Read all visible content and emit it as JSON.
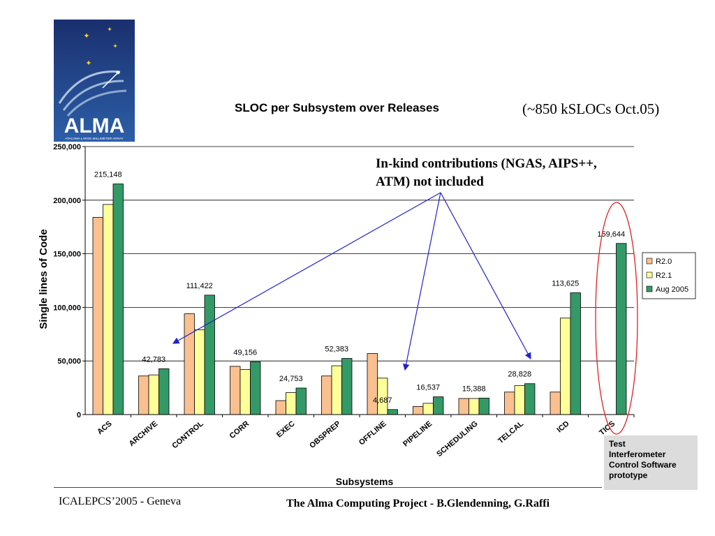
{
  "logo": {
    "wordmark": "ALMA",
    "subtitle": "ATACAMA LARGE MILLIMETER ARRAY"
  },
  "notes": {
    "ksloc": "(~850 kSLOCs Oct.05)",
    "inkind_line1": "In-kind contributions (NGAS, AIPS++,",
    "inkind_line2": "ATM) not included",
    "tics_line1": "Test",
    "tics_line2": "Interferometer",
    "tics_line3": "Control Software",
    "tics_line4": "prototype"
  },
  "footer": {
    "left": "ICALEPCS’2005 - Geneva",
    "right": "The Alma Computing Project - B.Glendenning, G.Raffi"
  },
  "colors": {
    "R2.0": "#fac090",
    "R2.1": "#ffff99",
    "Aug 2005": "#339966",
    "arrow": "#2222cc",
    "ellipse": "#e02020"
  },
  "chart_data": {
    "type": "bar",
    "title": "SLOC per Subsystem over Releases",
    "xlabel": "Subsystems",
    "ylabel": "Single lines of Code",
    "ylim": [
      0,
      250000
    ],
    "yticks": [
      "0",
      "50,000",
      "100,000",
      "150,000",
      "200,000",
      "250,000"
    ],
    "grid": true,
    "legend_position": "right",
    "categories": [
      "ACS",
      "ARCHIVE",
      "CONTROL",
      "CORR",
      "EXEC",
      "OBSPREP",
      "OFFLINE",
      "PIPELINE",
      "SCHEDULING",
      "TELCAL",
      "ICD",
      "TICS"
    ],
    "series": [
      {
        "name": "R2.0",
        "values": [
          184000,
          36000,
          94000,
          45000,
          13000,
          36000,
          57000,
          7500,
          15000,
          21000,
          21000,
          0
        ]
      },
      {
        "name": "R2.1",
        "values": [
          196000,
          37000,
          79000,
          42000,
          20500,
          45500,
          34000,
          10500,
          15000,
          27000,
          90000,
          0
        ]
      },
      {
        "name": "Aug 2005",
        "values": [
          215148,
          42783,
          111422,
          49156,
          24753,
          52383,
          4687,
          16537,
          15388,
          28828,
          113625,
          159644
        ]
      }
    ],
    "data_labels": [
      "215,148",
      "42,783",
      "111,422",
      "49,156",
      "24,753",
      "52,383",
      "4,687",
      "16,537",
      "15,388",
      "28,828",
      "113,625",
      "159,644"
    ]
  }
}
